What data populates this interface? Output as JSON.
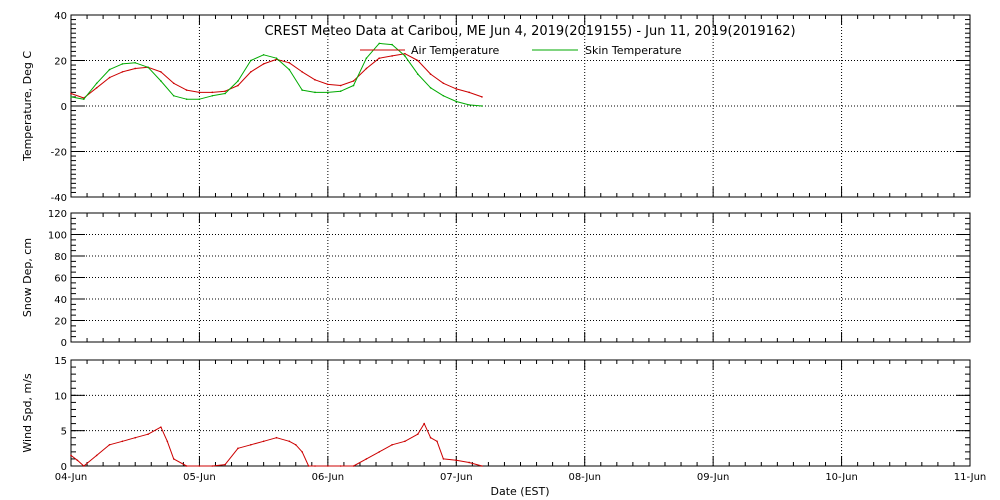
{
  "title": "CREST Meteo Data at Caribou, ME   Jun  4, 2019(2019155) - Jun 11, 2019(2019162)",
  "xlabel": "Date (EST)",
  "colors": {
    "air": "#cc0000",
    "skin": "#00aa00",
    "wind": "#cc0000"
  },
  "chart_data": [
    {
      "type": "line",
      "ylabel": "Temperature, Deg C",
      "ylim": [
        -40,
        40
      ],
      "yticks": [
        -40,
        -20,
        0,
        20,
        40
      ],
      "xlim": [
        0,
        7
      ],
      "xtick_labels": [
        "04-Jun",
        "05-Jun",
        "06-Jun",
        "07-Jun",
        "08-Jun",
        "09-Jun",
        "10-Jun",
        "11-Jun"
      ],
      "grid": true,
      "legend": "top-center",
      "series": [
        {
          "name": "Air Temperature",
          "color": "#cc0000",
          "x": [
            0,
            0.1,
            0.2,
            0.3,
            0.4,
            0.5,
            0.6,
            0.7,
            0.8,
            0.9,
            1.0,
            1.1,
            1.2,
            1.3,
            1.4,
            1.5,
            1.6,
            1.7,
            1.8,
            1.9,
            2.0,
            2.1,
            2.2,
            2.3,
            2.4,
            2.5,
            2.6,
            2.7,
            2.8,
            2.9,
            3.0,
            3.1,
            3.2
          ],
          "y": [
            5.5,
            3.5,
            8.0,
            12.5,
            15.0,
            16.5,
            17.0,
            15.0,
            10.0,
            7.0,
            6.0,
            6.0,
            6.5,
            9.0,
            15.0,
            18.5,
            20.5,
            19.0,
            15.0,
            11.5,
            9.5,
            9.0,
            11.0,
            16.5,
            21.0,
            22.0,
            23.0,
            20.0,
            14.0,
            10.0,
            7.5,
            6.0,
            4.0
          ]
        },
        {
          "name": "Skin Temperature",
          "color": "#00aa00",
          "x": [
            0,
            0.1,
            0.2,
            0.3,
            0.4,
            0.5,
            0.6,
            0.7,
            0.8,
            0.9,
            1.0,
            1.1,
            1.2,
            1.3,
            1.4,
            1.5,
            1.6,
            1.7,
            1.8,
            1.9,
            2.0,
            2.1,
            2.2,
            2.3,
            2.4,
            2.5,
            2.6,
            2.7,
            2.8,
            2.9,
            3.0,
            3.1,
            3.2
          ],
          "y": [
            4.0,
            3.0,
            10.0,
            16.0,
            18.5,
            19.0,
            17.0,
            11.0,
            4.5,
            3.0,
            3.0,
            4.5,
            5.5,
            11.0,
            20.0,
            22.5,
            21.0,
            16.0,
            7.0,
            6.0,
            6.0,
            6.5,
            9.0,
            21.0,
            27.5,
            27.0,
            22.0,
            14.0,
            8.0,
            4.5,
            2.0,
            0.5,
            0.0
          ]
        }
      ]
    },
    {
      "type": "line",
      "ylabel": "Snow Dep, cm",
      "ylim": [
        0,
        120
      ],
      "yticks": [
        0,
        20,
        40,
        60,
        80,
        100,
        120
      ],
      "xlim": [
        0,
        7
      ],
      "grid": true,
      "series": []
    },
    {
      "type": "line",
      "ylabel": "Wind Spd, m/s",
      "ylim": [
        0,
        15
      ],
      "yticks": [
        0,
        5,
        10,
        15
      ],
      "xlim": [
        0,
        7
      ],
      "xtick_labels": [
        "04-Jun",
        "05-Jun",
        "06-Jun",
        "07-Jun",
        "08-Jun",
        "09-Jun",
        "10-Jun",
        "11-Jun"
      ],
      "grid": true,
      "series": [
        {
          "color": "#cc0000",
          "x": [
            0,
            0.05,
            0.1,
            0.2,
            0.3,
            0.4,
            0.5,
            0.6,
            0.7,
            0.75,
            0.8,
            0.9,
            1.0,
            1.1,
            1.2,
            1.3,
            1.4,
            1.5,
            1.6,
            1.7,
            1.75,
            1.8,
            1.85,
            1.9,
            2.0,
            2.1,
            2.2,
            2.3,
            2.4,
            2.5,
            2.6,
            2.7,
            2.75,
            2.8,
            2.85,
            2.9,
            3.0,
            3.1,
            3.2
          ],
          "y": [
            1.5,
            0.8,
            0.0,
            1.5,
            3.0,
            3.5,
            4.0,
            4.5,
            5.5,
            3.5,
            1.0,
            0.0,
            0.0,
            0.0,
            0.2,
            2.5,
            3.0,
            3.5,
            4.0,
            3.5,
            3.0,
            2.0,
            0.0,
            0.0,
            0.0,
            0.0,
            0.0,
            1.0,
            2.0,
            3.0,
            3.5,
            4.5,
            6.0,
            4.0,
            3.5,
            1.0,
            0.8,
            0.5,
            0.0
          ]
        }
      ]
    }
  ]
}
